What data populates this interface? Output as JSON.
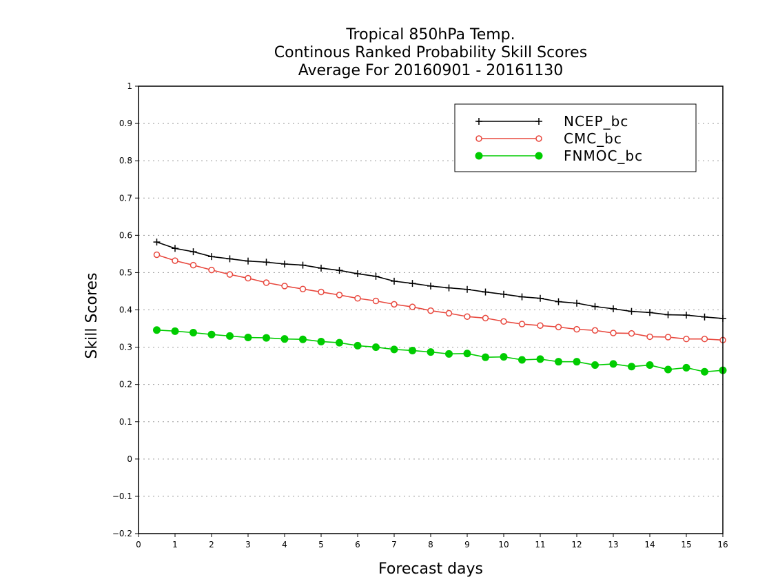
{
  "chart_data": {
    "type": "line",
    "title_lines": [
      "Tropical 850hPa Temp.",
      "Continous Ranked Probability Skill Scores",
      "Average For 20160901 - 20161130"
    ],
    "xlabel": "Forecast days",
    "ylabel": "Skill Scores",
    "xlim": [
      0,
      16
    ],
    "ylim": [
      -0.2,
      1
    ],
    "x_ticks": [
      0,
      1,
      2,
      3,
      4,
      5,
      6,
      7,
      8,
      9,
      10,
      11,
      12,
      13,
      14,
      15,
      16
    ],
    "y_ticks": [
      -0.2,
      -0.1,
      0,
      0.1,
      0.2,
      0.3,
      0.4,
      0.5,
      0.6,
      0.7,
      0.8,
      0.9,
      1
    ],
    "x_tick_labels": [
      "0",
      "1",
      "2",
      "3",
      "4",
      "5",
      "6",
      "7",
      "8",
      "9",
      "10",
      "11",
      "12",
      "13",
      "14",
      "15",
      "16"
    ],
    "y_tick_labels": [
      "−0.2",
      "−0.1",
      "0",
      "0.1",
      "0.2",
      "0.3",
      "0.4",
      "0.5",
      "0.6",
      "0.7",
      "0.8",
      "0.9",
      "1"
    ],
    "grid": "horizontal-dotted",
    "legend_position": "top-right",
    "x": [
      0.5,
      1,
      1.5,
      2,
      2.5,
      3,
      3.5,
      4,
      4.5,
      5,
      5.5,
      6,
      6.5,
      7,
      7.5,
      8,
      8.5,
      9,
      9.5,
      10,
      10.5,
      11,
      11.5,
      12,
      12.5,
      13,
      13.5,
      14,
      14.5,
      15,
      15.5,
      16
    ],
    "series": [
      {
        "name": "NCEP_bc",
        "color": "#000000",
        "marker": "plus",
        "values": [
          0.582,
          0.565,
          0.556,
          0.543,
          0.537,
          0.531,
          0.528,
          0.523,
          0.52,
          0.512,
          0.506,
          0.497,
          0.49,
          0.477,
          0.471,
          0.464,
          0.459,
          0.455,
          0.448,
          0.442,
          0.435,
          0.431,
          0.422,
          0.418,
          0.409,
          0.403,
          0.396,
          0.393,
          0.387,
          0.386,
          0.381,
          0.377
        ]
      },
      {
        "name": "CMC_bc",
        "color": "#e8483e",
        "marker": "open-circle",
        "values": [
          0.548,
          0.532,
          0.52,
          0.507,
          0.495,
          0.485,
          0.473,
          0.464,
          0.456,
          0.448,
          0.44,
          0.431,
          0.424,
          0.415,
          0.408,
          0.398,
          0.391,
          0.382,
          0.378,
          0.369,
          0.362,
          0.358,
          0.354,
          0.348,
          0.345,
          0.338,
          0.337,
          0.328,
          0.327,
          0.322,
          0.322,
          0.319
        ]
      },
      {
        "name": "FNMOC_bc",
        "color": "#00cc00",
        "marker": "filled-circle",
        "values": [
          0.346,
          0.343,
          0.339,
          0.334,
          0.33,
          0.326,
          0.325,
          0.322,
          0.321,
          0.315,
          0.312,
          0.304,
          0.3,
          0.294,
          0.291,
          0.287,
          0.282,
          0.283,
          0.273,
          0.274,
          0.266,
          0.268,
          0.261,
          0.261,
          0.252,
          0.255,
          0.248,
          0.252,
          0.24,
          0.245,
          0.234,
          0.238
        ]
      }
    ]
  }
}
